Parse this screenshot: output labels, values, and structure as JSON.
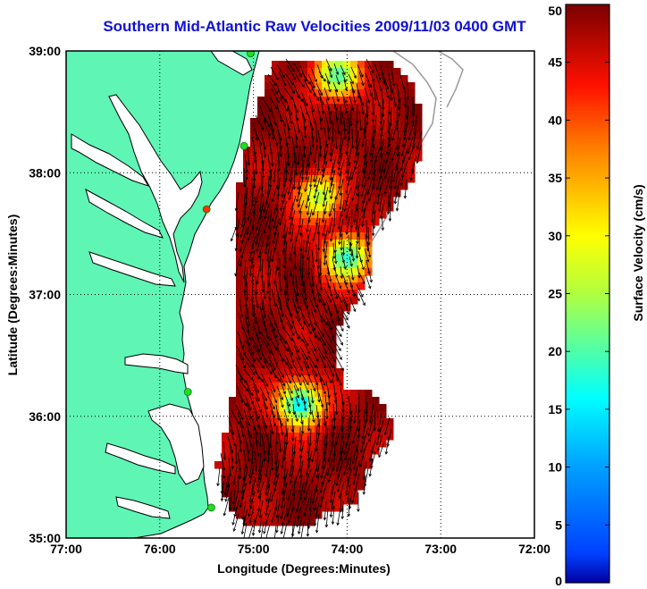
{
  "title": "Southern Mid-Atlantic Raw Velocities 2009/11/03 0400 GMT",
  "xlabel": "Longitude (Degrees:Minutes)",
  "ylabel": "Latitude (Degrees:Minutes)",
  "colorbar_label": "Surface Velocity (cm/s)",
  "x_ticks": [
    "77:00",
    "76:00",
    "75:00",
    "74:00",
    "73:00",
    "72:00"
  ],
  "y_ticks": [
    "39:00",
    "38:00",
    "37:00",
    "36:00",
    "35:00"
  ],
  "colorbar_ticks": [
    "50",
    "45",
    "40",
    "35",
    "30",
    "25",
    "20",
    "15",
    "10",
    "5",
    "0"
  ],
  "colors": {
    "land": "#5ff5b4",
    "coastline": "#000000",
    "title": "#1010d8",
    "arrow": "#000000",
    "site_marker": "#22dd22",
    "site_marker_alt": "#ff3300"
  },
  "chart_data": {
    "type": "heatmap",
    "xlim": [
      -77,
      -72
    ],
    "ylim": [
      35,
      39
    ],
    "clim": [
      0,
      50
    ],
    "colormap": "jet",
    "grid": true,
    "colorbar": "right",
    "low_speed_regions": [
      {
        "lon": -74.5,
        "lat": 36.1,
        "speed": 15
      },
      {
        "lon": -74.0,
        "lat": 37.3,
        "speed": 18
      },
      {
        "lon": -74.1,
        "lat": 38.8,
        "speed": 20
      },
      {
        "lon": -74.3,
        "lat": 37.8,
        "speed": 25
      }
    ],
    "radar_sites": [
      {
        "lon": -75.03,
        "lat": 38.98
      },
      {
        "lon": -75.1,
        "lat": 38.22
      },
      {
        "lon": -75.5,
        "lat": 37.7
      },
      {
        "lon": -75.7,
        "lat": 36.2
      },
      {
        "lon": -75.45,
        "lat": 35.25
      }
    ]
  }
}
